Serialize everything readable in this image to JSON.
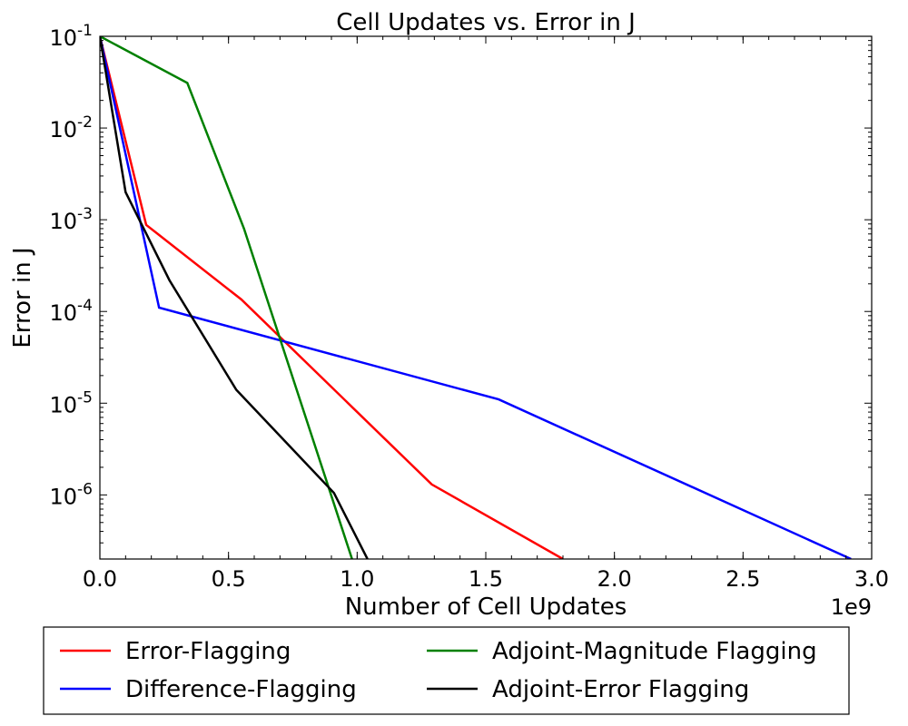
{
  "chart_data": {
    "type": "line",
    "title": "Cell Updates vs. Error in J",
    "xlabel": "Number of Cell Updates",
    "ylabel": "Error in J",
    "x_offset_label": "1e9",
    "xscale": "linear",
    "yscale": "log",
    "xlim": [
      0,
      3.0
    ],
    "ylim": [
      2e-07,
      0.1
    ],
    "xticks": [
      0,
      0.5,
      1.0,
      1.5,
      2.0,
      2.5,
      3.0
    ],
    "xtick_labels": [
      "0.0",
      "0.5",
      "1.0",
      "1.5",
      "2.0",
      "2.5",
      "3.0"
    ],
    "yticks": [
      {
        "value": 0.1,
        "base": "10",
        "exp": "-1"
      },
      {
        "value": 0.01,
        "base": "10",
        "exp": "-2"
      },
      {
        "value": 0.001,
        "base": "10",
        "exp": "-3"
      },
      {
        "value": 0.0001,
        "base": "10",
        "exp": "-4"
      },
      {
        "value": 1e-05,
        "base": "10",
        "exp": "-5"
      },
      {
        "value": 1e-06,
        "base": "10",
        "exp": "-6"
      }
    ],
    "legend_position": "below",
    "series": [
      {
        "name": "Error-Flagging",
        "color": "#ff0000",
        "x": [
          0.0,
          0.18,
          0.55,
          1.29,
          1.8
        ],
        "y": [
          0.1,
          0.00088,
          0.000135,
          1.3e-06,
          2e-07
        ]
      },
      {
        "name": "Difference-Flagging",
        "color": "#0000ff",
        "x": [
          0.0,
          0.23,
          1.55,
          2.92
        ],
        "y": [
          0.1,
          0.00011,
          1.1e-05,
          2e-07
        ]
      },
      {
        "name": "Adjoint-Magnitude Flagging",
        "color": "#008000",
        "x": [
          0.0,
          0.34,
          0.56,
          0.98
        ],
        "y": [
          0.1,
          0.031,
          0.0008,
          2e-07
        ]
      },
      {
        "name": "Adjoint-Error Flagging",
        "color": "#000000",
        "x": [
          0.0,
          0.1,
          0.27,
          0.53,
          0.91,
          1.04
        ],
        "y": [
          0.1,
          0.002,
          0.00022,
          1.4e-05,
          1.05e-06,
          2e-07
        ]
      }
    ]
  }
}
